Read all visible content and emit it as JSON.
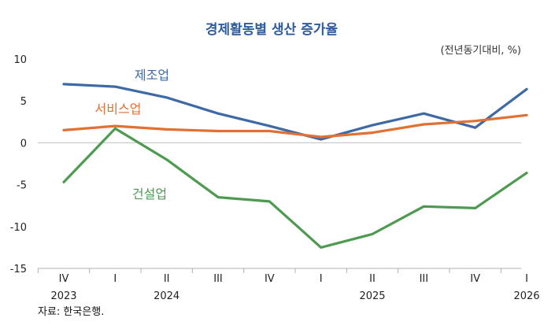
{
  "chart_data": {
    "type": "line",
    "title": "경제활동별 생산 증가율",
    "unit_note": "(전년동기대비, %)",
    "source": "자료: 한국은행.",
    "ylim": [
      -15,
      10
    ],
    "yticks": [
      10,
      5,
      0,
      -5,
      -10,
      -15
    ],
    "categories": [
      "IV",
      "I",
      "II",
      "III",
      "IV",
      "I",
      "II",
      "III",
      "IV",
      "I"
    ],
    "year_labels": [
      {
        "index": 0,
        "label": "2023"
      },
      {
        "index": 2,
        "label": "2024"
      },
      {
        "index": 6,
        "label": "2025"
      },
      {
        "index": 9,
        "label": "2026"
      }
    ],
    "grid": false,
    "series": [
      {
        "name": "제조업",
        "color": "#3d6aa5",
        "values": [
          7.0,
          6.7,
          5.4,
          3.5,
          2.0,
          0.4,
          2.1,
          3.5,
          1.8,
          6.4
        ]
      },
      {
        "name": "서비스업",
        "color": "#e07033",
        "values": [
          1.5,
          2.0,
          1.6,
          1.4,
          1.4,
          0.7,
          1.2,
          2.2,
          2.6,
          3.3
        ]
      },
      {
        "name": "건설업",
        "color": "#4d9a50",
        "values": [
          -4.7,
          1.7,
          -2.0,
          -6.5,
          -7.0,
          -12.5,
          -10.9,
          -7.6,
          -7.8,
          -3.6
        ]
      }
    ]
  }
}
